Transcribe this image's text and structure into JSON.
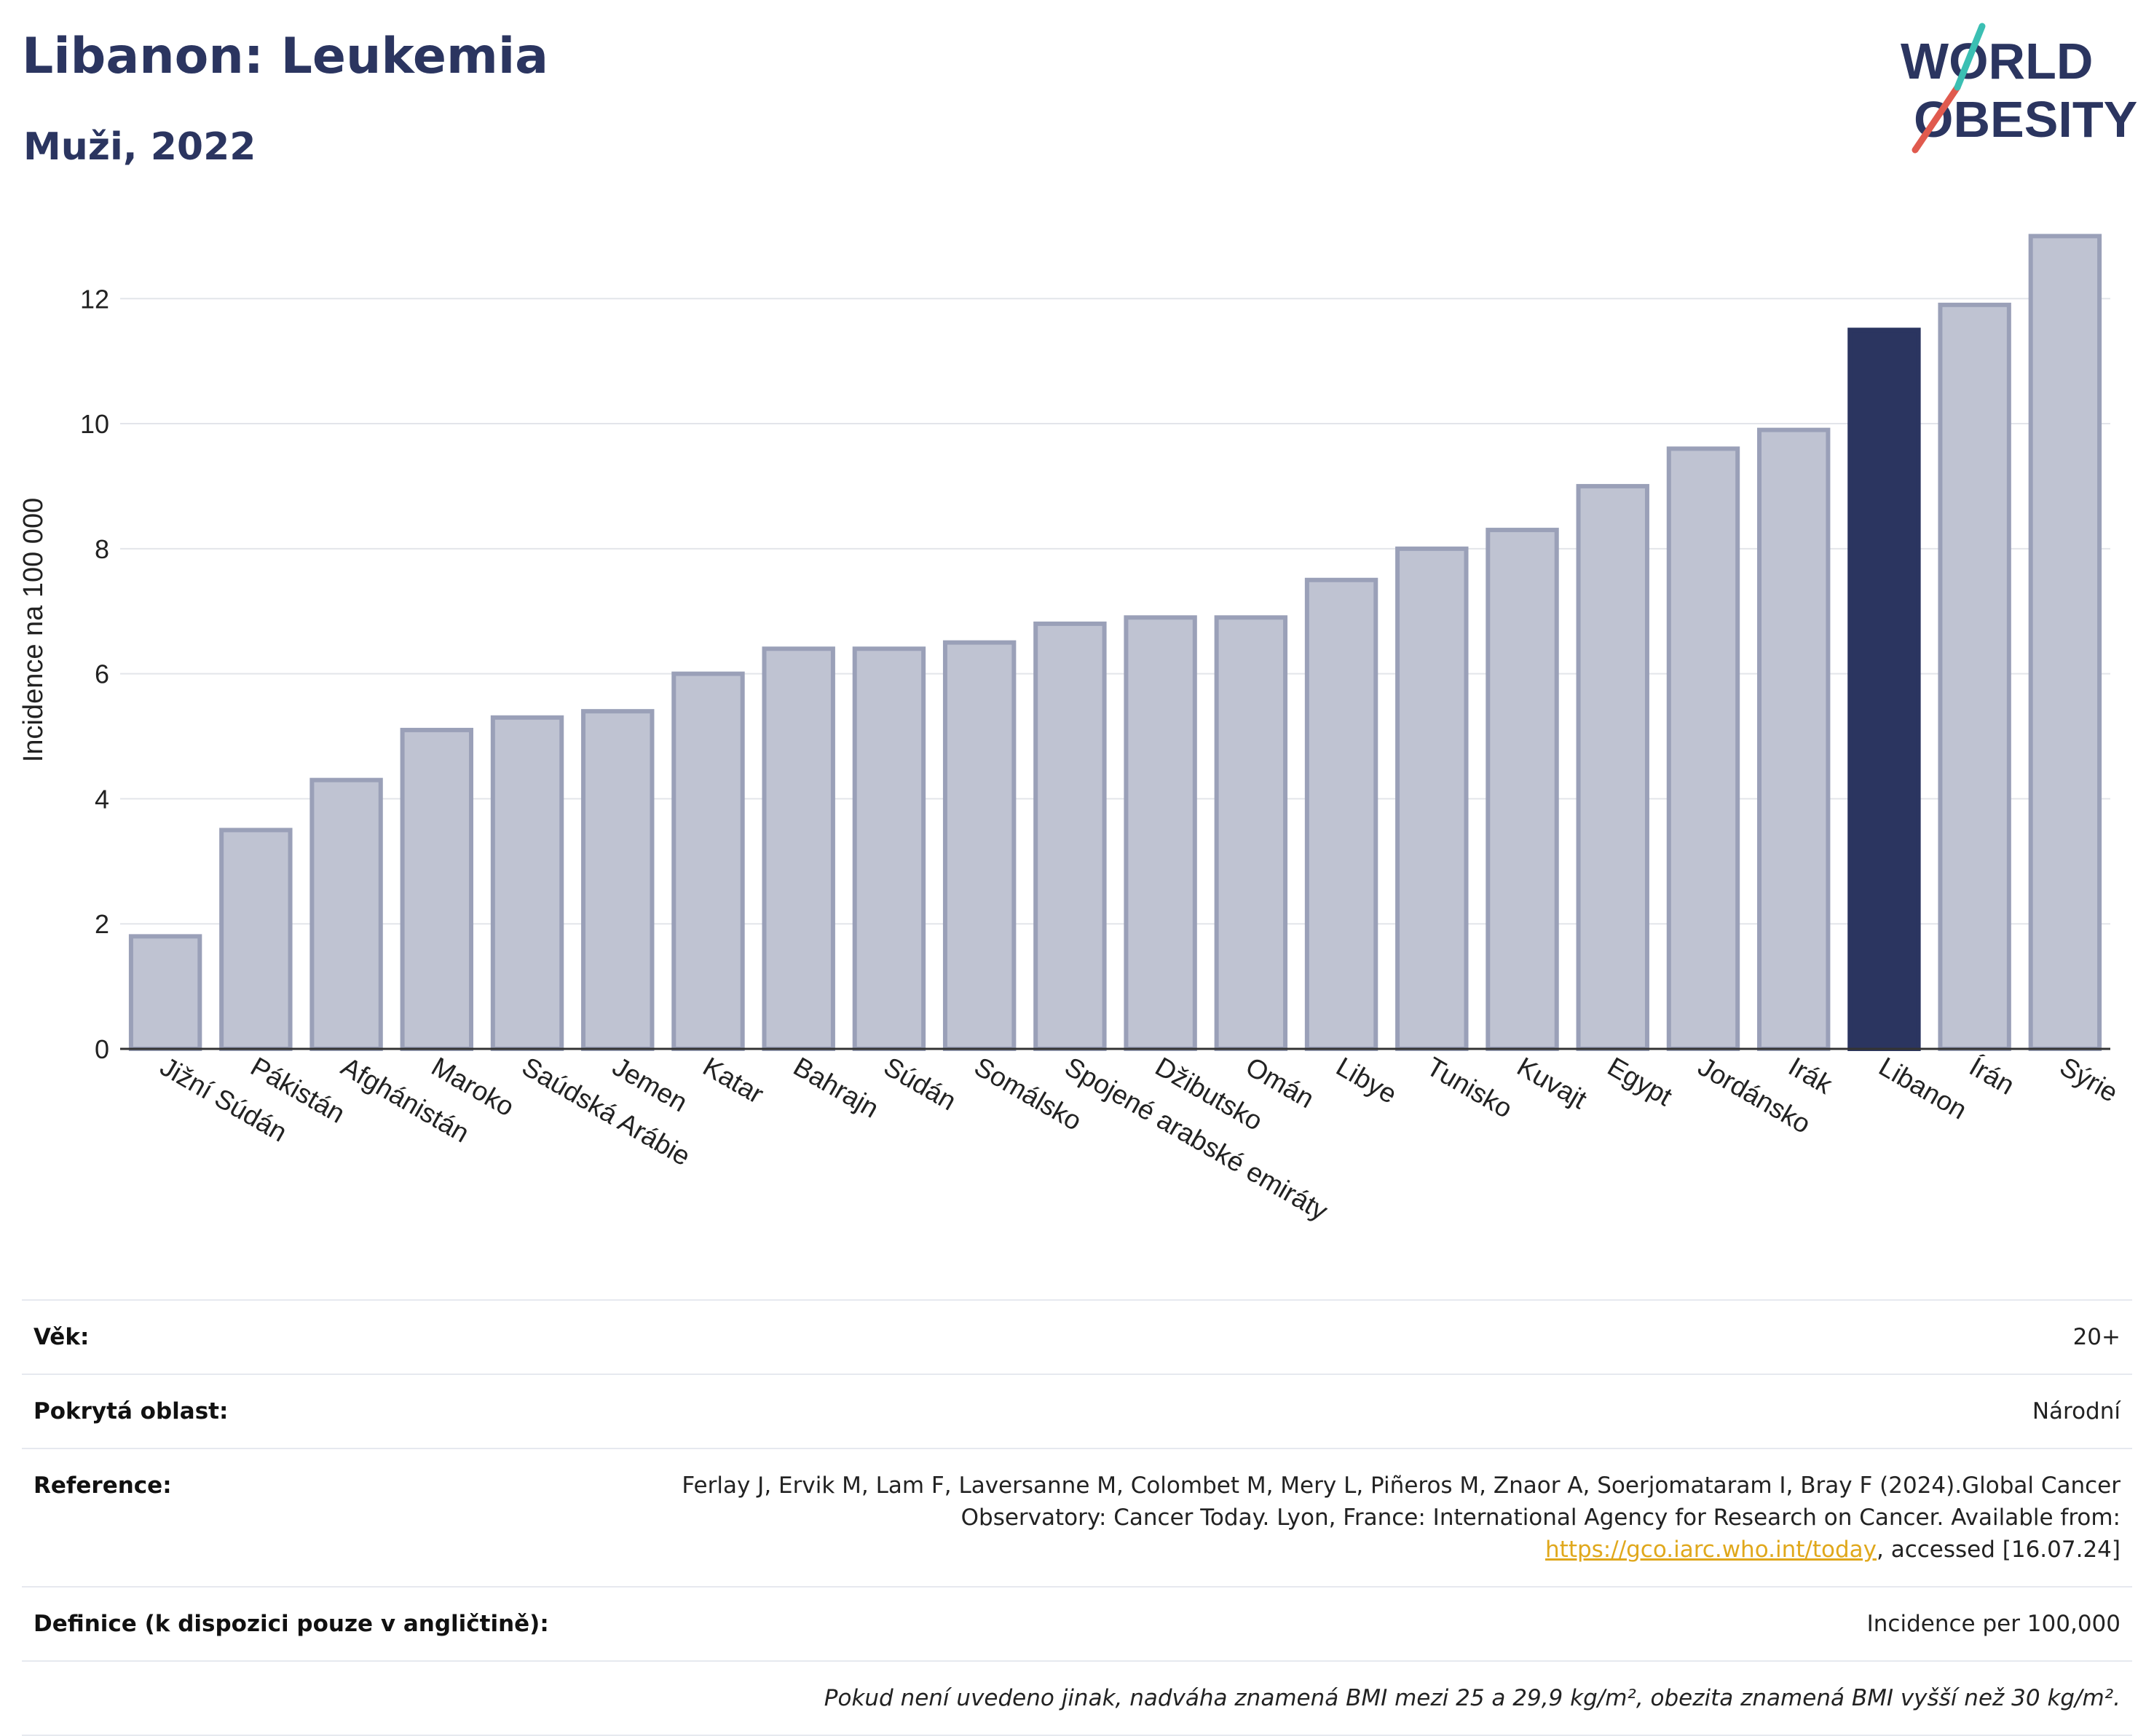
{
  "header": {
    "title": "Libanon: Leukemia",
    "subtitle": "Muži, 2022"
  },
  "logo": {
    "line1": "WORLD",
    "line2": "OBESITY",
    "colors": {
      "text": "#2b3560",
      "slash_red": "#e05a4e",
      "slash_teal": "#3bbfb3"
    }
  },
  "chart_data": {
    "type": "bar",
    "title": "",
    "xlabel": "",
    "ylabel": "Incidence na 100 000",
    "ylim": [
      0,
      13.4
    ],
    "yticks": [
      0,
      2,
      4,
      6,
      8,
      10,
      12
    ],
    "grid": true,
    "legend": "none",
    "highlight": "Libanon",
    "colors": {
      "bar": "#bfc3d2",
      "bar_edge": "#9aa0b8",
      "highlight": "#2b3560"
    },
    "categories": [
      "Jižní Súdán",
      "Pákistán",
      "Afghánistán",
      "Maroko",
      "Saúdská Arábie",
      "Jemen",
      "Katar",
      "Bahrajn",
      "Súdán",
      "Somálsko",
      "Spojené arabské emiráty",
      "Džibutsko",
      "Omán",
      "Libye",
      "Tunisko",
      "Kuvajt",
      "Egypt",
      "Jordánsko",
      "Irák",
      "Libanon",
      "Írán",
      "Sýrie"
    ],
    "values": [
      1.8,
      3.5,
      4.3,
      5.1,
      5.3,
      5.4,
      6.0,
      6.4,
      6.4,
      6.5,
      6.8,
      6.9,
      6.9,
      7.5,
      8.0,
      8.3,
      9.0,
      9.6,
      9.9,
      11.5,
      11.9,
      13.0
    ]
  },
  "info": {
    "age_label": "Věk:",
    "age_value": "20+",
    "area_label": "Pokrytá oblast:",
    "area_value": "Národní",
    "ref_label": "Reference:",
    "ref_text_before": "Ferlay J, Ervik M, Lam F, Laversanne M, Colombet M, Mery L, Piñeros M, Znaor A, Soerjomataram I, Bray F (2024).Global Cancer Observatory: Cancer Today. Lyon, France: International Agency for Research on Cancer. Available from: ",
    "ref_link": "https://gco.iarc.who.int/today",
    "ref_text_after": ", accessed [16.07.24]",
    "def_label": "Definice (k dispozici pouze v angličtině):",
    "def_value": "Incidence per 100,000",
    "note": "Pokud není uvedeno jinak, nadváha znamená BMI mezi 25 a 29,9 kg/m², obezita znamená BMI vyšší než 30 kg/m²."
  }
}
